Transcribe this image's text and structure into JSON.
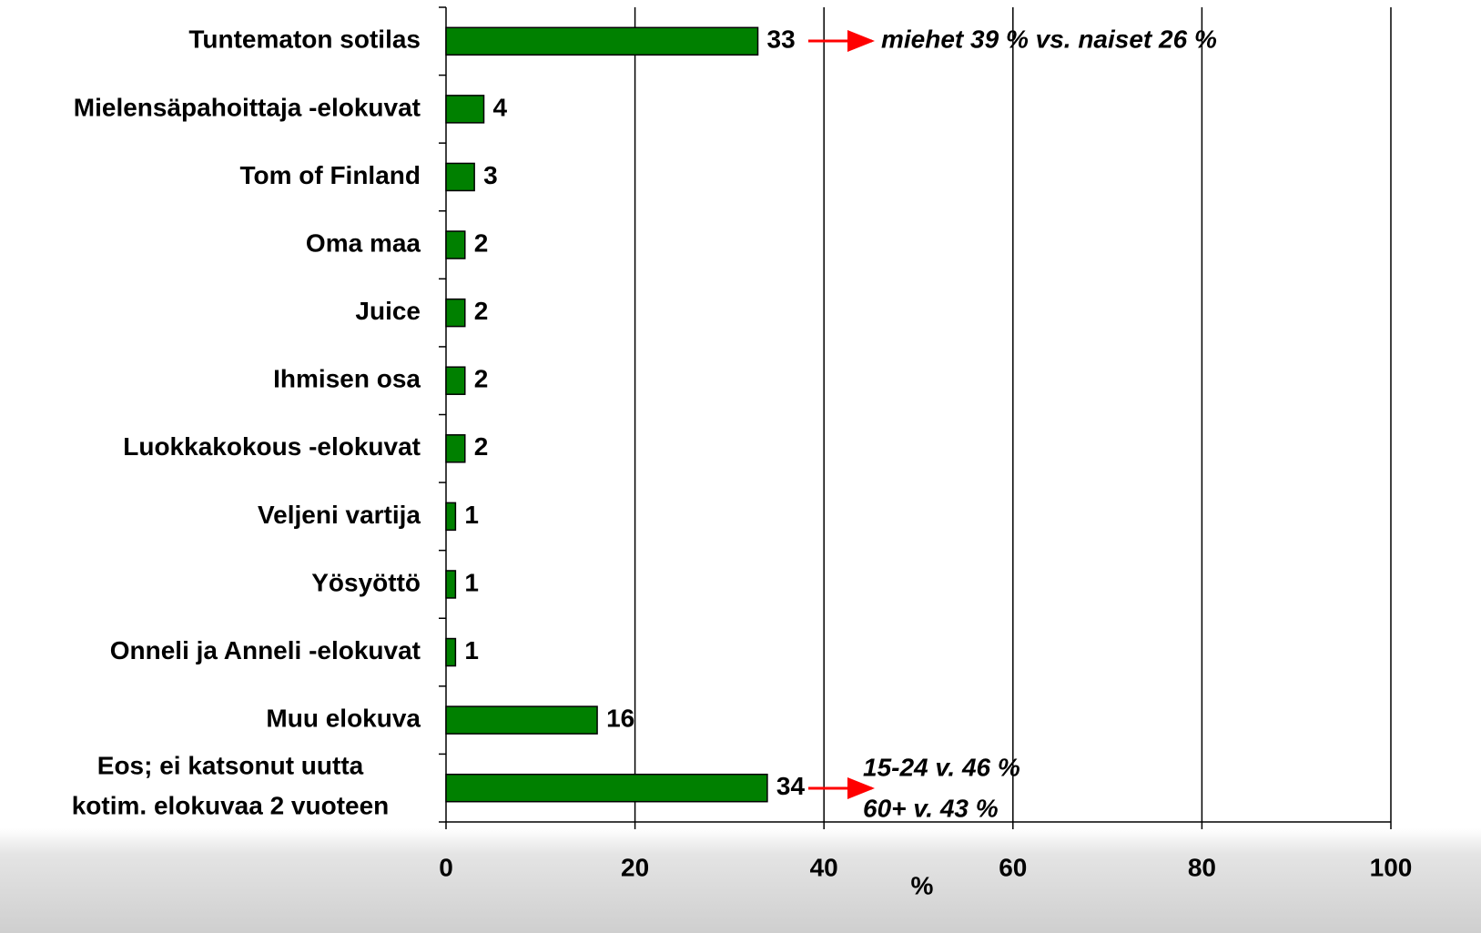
{
  "chart_data": {
    "type": "bar",
    "orientation": "horizontal",
    "categories": [
      "Tuntematon sotilas",
      "Mielensäpahoittaja -elokuvat",
      "Tom of Finland",
      "Oma maa",
      "Juice",
      "Ihmisen osa",
      "Luokkakokous -elokuvat",
      "Veljeni vartija",
      "Yösyöttö",
      "Onneli ja Anneli -elokuvat",
      "Muu elokuva",
      "Eos; ei katsonut uutta\nkotim. elokuvaa 2 vuoteen"
    ],
    "values": [
      33,
      4,
      3,
      2,
      2,
      2,
      2,
      1,
      1,
      1,
      16,
      34
    ],
    "color": "#008000",
    "xlim": [
      0,
      100
    ],
    "xticks": [
      0,
      20,
      40,
      60,
      80,
      100
    ],
    "grid": true,
    "xlabel": "%",
    "annotations": [
      "miehet 39 % vs. naiset 26 %",
      "15-24 v. 46 %",
      "60+ v. 43 %"
    ]
  }
}
